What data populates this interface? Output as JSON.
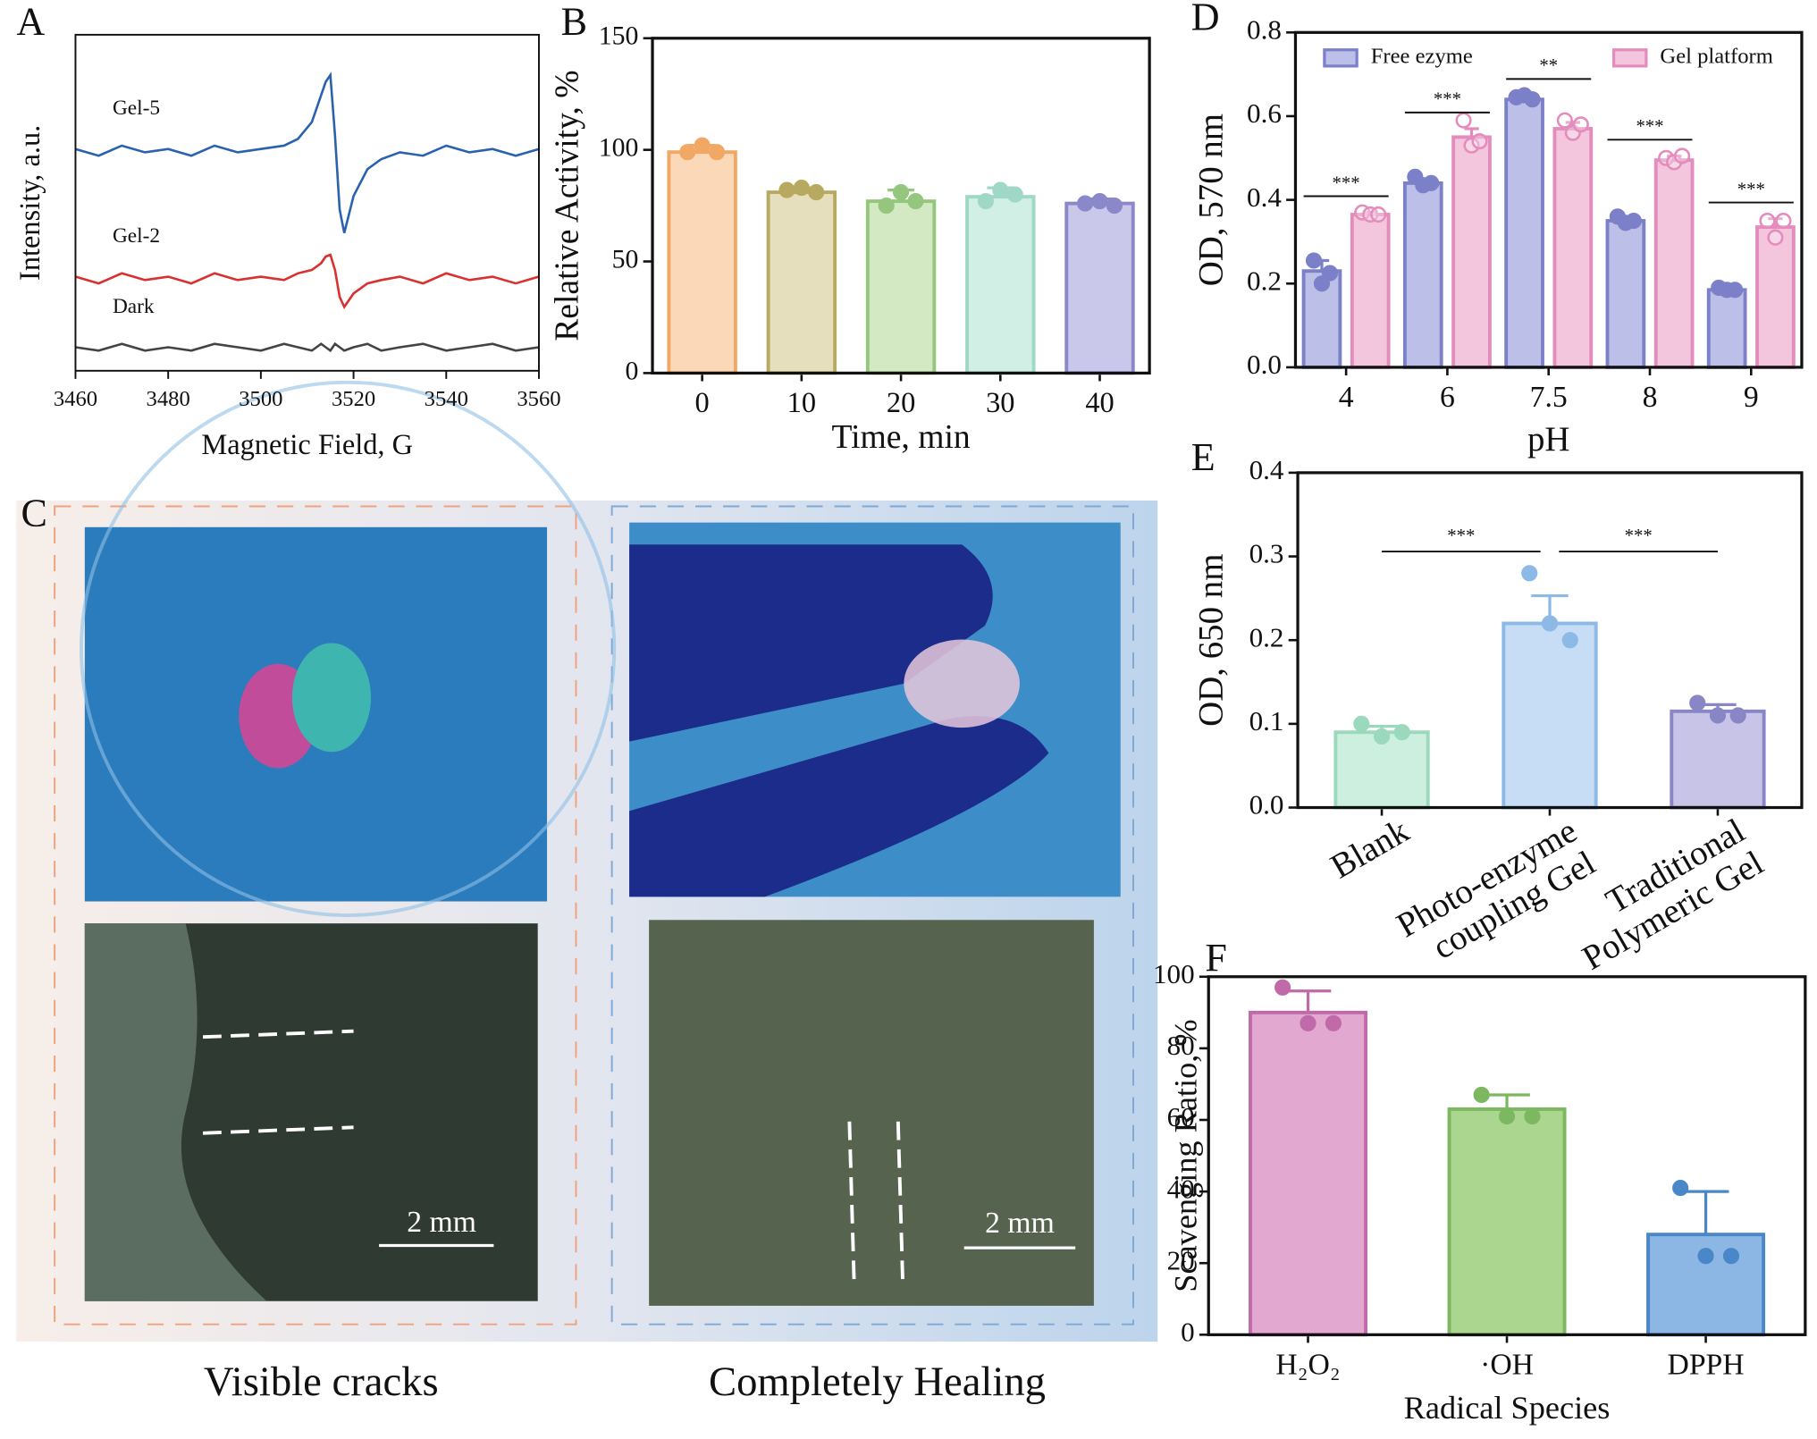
{
  "chart_data": [
    {
      "type": "line",
      "panel": "A",
      "xlabel": "Magnetic Field, G",
      "ylabel": "Intensity, a.u.",
      "x": [
        3460,
        3465,
        3470,
        3475,
        3480,
        3485,
        3490,
        3495,
        3500,
        3505,
        3508,
        3511,
        3513,
        3514,
        3515,
        3516,
        3517,
        3518,
        3520,
        3523,
        3526,
        3530,
        3535,
        3540,
        3545,
        3550,
        3555,
        3560
      ],
      "xlim": [
        3460,
        3560
      ],
      "xticks": [
        3460,
        3480,
        3500,
        3520,
        3540,
        3560
      ],
      "ylim": [
        0,
        1
      ],
      "series": [
        {
          "name": "Gel-5",
          "color": "#2a62b0",
          "values": [
            0.66,
            0.64,
            0.67,
            0.65,
            0.66,
            0.64,
            0.67,
            0.65,
            0.66,
            0.67,
            0.69,
            0.74,
            0.82,
            0.86,
            0.88,
            0.7,
            0.48,
            0.41,
            0.52,
            0.6,
            0.63,
            0.65,
            0.64,
            0.67,
            0.65,
            0.66,
            0.64,
            0.66
          ]
        },
        {
          "name": "Gel-2",
          "color": "#d93030",
          "values": [
            0.28,
            0.26,
            0.29,
            0.27,
            0.28,
            0.26,
            0.29,
            0.27,
            0.28,
            0.27,
            0.29,
            0.3,
            0.32,
            0.34,
            0.345,
            0.3,
            0.22,
            0.19,
            0.23,
            0.26,
            0.27,
            0.28,
            0.26,
            0.29,
            0.27,
            0.28,
            0.26,
            0.28
          ]
        },
        {
          "name": "Dark",
          "color": "#444444",
          "values": [
            0.07,
            0.06,
            0.08,
            0.06,
            0.07,
            0.06,
            0.08,
            0.07,
            0.06,
            0.08,
            0.07,
            0.06,
            0.08,
            0.07,
            0.06,
            0.08,
            0.07,
            0.06,
            0.07,
            0.08,
            0.06,
            0.07,
            0.08,
            0.06,
            0.07,
            0.08,
            0.06,
            0.07
          ]
        }
      ]
    },
    {
      "type": "bar",
      "panel": "B",
      "xlabel": "Time, min",
      "ylabel": "Relative Activity, %",
      "categories": [
        "0",
        "10",
        "20",
        "30",
        "40"
      ],
      "values": [
        99,
        81,
        77,
        79,
        76
      ],
      "errors": [
        3,
        2,
        5,
        4,
        2
      ],
      "points": [
        [
          99,
          102,
          99
        ],
        [
          82,
          83,
          81
        ],
        [
          75,
          81,
          77
        ],
        [
          77,
          82,
          80
        ],
        [
          76,
          77,
          75
        ]
      ],
      "colors": [
        "#fbd9b8",
        "#e6dfbe",
        "#d3e9c4",
        "#d1efe4",
        "#c9c7ea"
      ],
      "edge_colors": [
        "#f2a865",
        "#b8a960",
        "#94c77d",
        "#9fd8c6",
        "#8b88c9"
      ],
      "ylim": [
        0,
        150
      ],
      "yticks": [
        0,
        50,
        100,
        150
      ]
    },
    {
      "type": "grouped_bar",
      "panel": "D",
      "xlabel": "pH",
      "ylabel": "OD, 570 nm",
      "categories": [
        "4",
        "6",
        "7.5",
        "8",
        "9"
      ],
      "series": [
        {
          "name": "Free ezyme",
          "color": "#bcc0e8",
          "edge_color": "#7c80c8",
          "values": [
            0.23,
            0.44,
            0.64,
            0.35,
            0.185
          ],
          "errors": [
            0.025,
            0.01,
            0.01,
            0.01,
            0.005
          ],
          "points": [
            [
              0.255,
              0.2,
              0.225
            ],
            [
              0.455,
              0.435,
              0.44
            ],
            [
              0.645,
              0.65,
              0.64
            ],
            [
              0.36,
              0.345,
              0.35
            ],
            [
              0.19,
              0.185,
              0.185
            ]
          ]
        },
        {
          "name": "Gel platform",
          "color": "#f3c6de",
          "edge_color": "#e48dbd",
          "values": [
            0.365,
            0.55,
            0.57,
            0.495,
            0.335
          ],
          "errors": [
            0.005,
            0.02,
            0.015,
            0.01,
            0.02
          ],
          "points": [
            [
              0.37,
              0.365,
              0.365
            ],
            [
              0.59,
              0.53,
              0.54
            ],
            [
              0.59,
              0.56,
              0.58
            ],
            [
              0.5,
              0.49,
              0.505
            ],
            [
              0.35,
              0.31,
              0.35
            ]
          ]
        }
      ],
      "significance": [
        "***",
        "***",
        "**",
        "***",
        "***"
      ],
      "legend": "top",
      "ylim": [
        0,
        0.8
      ],
      "yticks": [
        {
          "value": 0,
          "label": "0.0"
        },
        0.2,
        0.4,
        0.6,
        0.8
      ]
    },
    {
      "type": "bar",
      "panel": "E",
      "ylabel": "OD, 650 nm",
      "categories": [
        [
          "Blank"
        ],
        [
          "Photo-enzyme",
          "coupling Gel"
        ],
        [
          "Traditional",
          "Polymeric Gel"
        ]
      ],
      "values": [
        0.09,
        0.22,
        0.115
      ],
      "errors": [
        0.007,
        0.033,
        0.008
      ],
      "points": [
        [
          0.1,
          0.085,
          0.09
        ],
        [
          0.28,
          0.22,
          0.2
        ],
        [
          0.125,
          0.11,
          0.11
        ]
      ],
      "colors": [
        "#ccefdf",
        "#c6ddf5",
        "#c7c4e8"
      ],
      "edge_colors": [
        "#9ad9bb",
        "#8db9e6",
        "#8986c5"
      ],
      "significance": [
        "***",
        "***"
      ],
      "ylim": [
        0,
        0.4
      ],
      "yticks": [
        {
          "value": 0,
          "label": "0.0"
        },
        0.1,
        0.2,
        0.3,
        0.4
      ]
    },
    {
      "type": "bar",
      "panel": "F",
      "xlabel": "Radical Species",
      "ylabel": "Scavenging Ratio, %",
      "categories": [
        "H₂O₂",
        "·OH",
        "DPPH"
      ],
      "values": [
        90,
        63,
        28
      ],
      "errors": [
        6,
        4,
        12
      ],
      "points": [
        [
          97,
          87,
          87
        ],
        [
          67,
          61,
          61
        ],
        [
          41,
          22,
          22
        ]
      ],
      "colors": [
        "#e2a8d0",
        "#aad68f",
        "#8cb7e4"
      ],
      "edge_colors": [
        "#c06aaa",
        "#7cb860",
        "#4a87c8"
      ],
      "ylim": [
        0,
        100
      ],
      "yticks": [
        0,
        20,
        40,
        60,
        80,
        100
      ]
    }
  ],
  "figure_panel": {
    "panel": "C",
    "captions": [
      "Visible cracks",
      "Completely Healing"
    ],
    "scale_bars": [
      "2 mm",
      "2 mm"
    ]
  }
}
